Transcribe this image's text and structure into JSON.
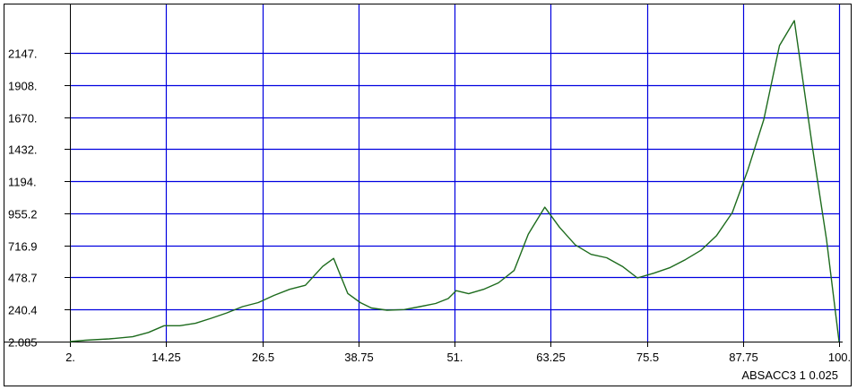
{
  "chart_data": {
    "type": "line",
    "title": "",
    "xlabel": "",
    "ylabel": "",
    "xlim": [
      2.0,
      100.0
    ],
    "ylim": [
      2.085,
      2386.0
    ],
    "grid": true,
    "x_ticks": [
      2.0,
      14.25,
      26.5,
      38.75,
      51.0,
      63.25,
      75.5,
      87.75,
      100.0
    ],
    "x_tick_labels": [
      "2.",
      "14.25",
      "26.5",
      "38.75",
      "51.",
      "63.25",
      "75.5",
      "87.75",
      "100."
    ],
    "y_ticks": [
      2.085,
      240.4,
      478.7,
      716.9,
      955.2,
      1194,
      1432,
      1670,
      1908,
      2147
    ],
    "y_tick_labels": [
      "2.085",
      "240.4",
      "478.7",
      "716.9",
      "955.2",
      "1194.",
      "1432.",
      "1670.",
      "1908.",
      "2147."
    ],
    "annotation": "ABSACC3 1 0.025",
    "colors": {
      "line": "#1d6b1d",
      "grid": "#0000e0",
      "axis": "#000000"
    },
    "series": [
      {
        "x": [
          2.0,
          4.0,
          7.0,
          10.0,
          12.0,
          14.0,
          16.0,
          18.0,
          20.0,
          22.0,
          24.0,
          26.0,
          28.0,
          30.0,
          32.0,
          34.2,
          35.6,
          37.4,
          39.0,
          40.4,
          42.4,
          44.6,
          46.6,
          48.6,
          50.2,
          51.2,
          52.8,
          54.8,
          56.6,
          58.6,
          60.4,
          62.5,
          64.4,
          66.4,
          68.4,
          70.4,
          72.4,
          74.3,
          76.4,
          78.4,
          80.4,
          82.4,
          84.4,
          86.4,
          88.4,
          90.4,
          92.4,
          94.3,
          96.6,
          98.4,
          100.0
        ],
        "y": [
          2.085,
          12,
          22,
          38,
          70,
          120,
          120,
          138,
          175,
          215,
          262,
          292,
          345,
          390,
          420,
          560,
          620,
          360,
          292,
          252,
          235,
          240,
          262,
          285,
          322,
          380,
          358,
          392,
          438,
          530,
          800,
          1000,
          850,
          720,
          650,
          625,
          560,
          475,
          510,
          550,
          610,
          680,
          790,
          960,
          1280,
          1650,
          2200,
          2386,
          1450,
          760,
          2.085
        ]
      }
    ]
  }
}
